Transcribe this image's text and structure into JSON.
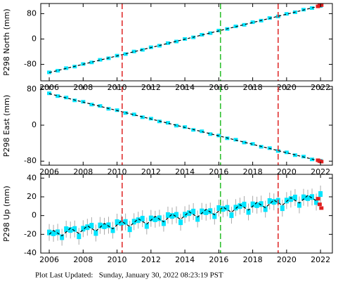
{
  "chart_data": [
    {
      "type": "scatter",
      "ylabel": "P298 North (mm)",
      "xlim": [
        2005.5,
        2022.7
      ],
      "ylim": [
        -132,
        112
      ],
      "xticks": [
        2006,
        2008,
        2010,
        2012,
        2014,
        2016,
        2018,
        2020,
        2022
      ],
      "yticks": [
        -80,
        0,
        80
      ],
      "events": [
        {
          "x": 2010.3,
          "color": "#e03030"
        },
        {
          "x": 2016.1,
          "color": "#30c030"
        },
        {
          "x": 2019.5,
          "color": "#e03030"
        }
      ],
      "series": [
        {
          "style": "points",
          "color": "#00e5ff",
          "x": [
            2006,
            2006.5,
            2007,
            2007.5,
            2008,
            2008.5,
            2009,
            2009.5,
            2010,
            2010.5,
            2011,
            2011.5,
            2012,
            2012.5,
            2013,
            2013.5,
            2014,
            2014.5,
            2015,
            2015.5,
            2016,
            2016.5,
            2017,
            2017.5,
            2018,
            2018.5,
            2019,
            2019.5,
            2020,
            2020.5,
            2021,
            2021.5,
            2022
          ],
          "values": [
            -105.2,
            -100.1,
            -92.0,
            -87.0,
            -78.9,
            -73.8,
            -65.6,
            -60.7,
            -52.5,
            -47.5,
            -39.4,
            -34.2,
            -26.1,
            -21.1,
            -13.0,
            -7.9,
            0.2,
            5.3,
            13.5,
            18.5,
            26.7,
            31.7,
            39.9,
            44.8,
            53.0,
            58.0,
            66.2,
            71.2,
            79.3,
            84.4,
            92.6,
            97.6,
            104.2
          ]
        },
        {
          "style": "dashed",
          "color": "#000000",
          "x": [
            2006,
            2022.1
          ],
          "values": [
            -106,
            106
          ]
        },
        {
          "style": "points",
          "color": "#e02020",
          "x": [
            2021.85,
            2021.95,
            2022.05
          ],
          "values": [
            103,
            106,
            107
          ]
        }
      ]
    },
    {
      "type": "scatter",
      "ylabel": "P298 East (mm)",
      "xlim": [
        2005.5,
        2022.7
      ],
      "ylim": [
        -89,
        86
      ],
      "xticks": [
        2006,
        2008,
        2010,
        2012,
        2014,
        2016,
        2018,
        2020,
        2022
      ],
      "yticks": [
        -80,
        0,
        80
      ],
      "events": [
        {
          "x": 2010.3,
          "color": "#e03030"
        },
        {
          "x": 2016.1,
          "color": "#30c030"
        },
        {
          "x": 2019.5,
          "color": "#e03030"
        }
      ],
      "series": [
        {
          "style": "points",
          "color": "#00e5ff",
          "x": [
            2006,
            2006.5,
            2007,
            2007.5,
            2008,
            2008.5,
            2009,
            2009.5,
            2010,
            2010.5,
            2011,
            2011.5,
            2012,
            2012.5,
            2013,
            2013.5,
            2014,
            2014.5,
            2015,
            2015.5,
            2016,
            2016.5,
            2017,
            2017.5,
            2018,
            2018.5,
            2019,
            2019.5,
            2020,
            2020.5,
            2021,
            2021.5,
            2022
          ],
          "values": [
            70.8,
            64.6,
            61.4,
            55.1,
            52.0,
            45.8,
            42.7,
            36.4,
            33.3,
            27.0,
            23.9,
            17.6,
            14.5,
            8.3,
            5.2,
            -1.1,
            -4.2,
            -10.5,
            -13.6,
            -19.9,
            -23.0,
            -29.2,
            -32.3,
            -38.6,
            -41.7,
            -48.0,
            -51.1,
            -57.4,
            -60.5,
            -66.7,
            -69.8,
            -76.1,
            -79.2
          ]
        },
        {
          "style": "dashed",
          "color": "#000000",
          "x": [
            2006,
            2022.1
          ],
          "values": [
            70,
            -81
          ]
        },
        {
          "style": "points",
          "color": "#e02020",
          "x": [
            2021.85,
            2021.95,
            2022.05
          ],
          "values": [
            -78,
            -80,
            -81
          ]
        }
      ]
    },
    {
      "type": "scatter",
      "ylabel": "P298 Up (mm)",
      "xlim": [
        2005.5,
        2022.7
      ],
      "ylim": [
        -40,
        44
      ],
      "xticks": [
        2006,
        2008,
        2010,
        2012,
        2014,
        2016,
        2018,
        2020,
        2022
      ],
      "yticks": [
        -40,
        -20,
        0,
        20,
        40
      ],
      "events": [
        {
          "x": 2010.3,
          "color": "#e03030"
        },
        {
          "x": 2016.1,
          "color": "#30c030"
        },
        {
          "x": 2019.5,
          "color": "#e03030"
        }
      ],
      "series": [
        {
          "style": "points",
          "color": "#00e5ff",
          "error": 9,
          "x": [
            2006,
            2006.25,
            2006.5,
            2006.75,
            2007,
            2007.25,
            2007.5,
            2007.75,
            2008,
            2008.25,
            2008.5,
            2008.75,
            2009,
            2009.25,
            2009.5,
            2009.75,
            2010,
            2010.25,
            2010.5,
            2010.75,
            2011,
            2011.25,
            2011.5,
            2011.75,
            2012,
            2012.25,
            2012.5,
            2012.75,
            2013,
            2013.25,
            2013.5,
            2013.75,
            2014,
            2014.25,
            2014.5,
            2014.75,
            2015,
            2015.25,
            2015.5,
            2015.75,
            2016,
            2016.25,
            2016.5,
            2016.75,
            2017,
            2017.25,
            2017.5,
            2017.75,
            2018,
            2018.25,
            2018.5,
            2018.75,
            2019,
            2019.25,
            2019.5,
            2019.75,
            2020,
            2020.25,
            2020.5,
            2020.75,
            2021,
            2021.25,
            2021.5,
            2021.75,
            2022
          ],
          "values": [
            -18,
            -18.9,
            -17.8,
            -23.1,
            -14.5,
            -15.4,
            -14.3,
            -22.1,
            -14,
            -12.4,
            -10.8,
            -18.6,
            -10.5,
            -11.4,
            -10.3,
            -15.6,
            -7,
            -7.9,
            -6.8,
            -14.6,
            -6.5,
            -4.9,
            -3.3,
            -11.1,
            -3,
            -3.9,
            -2.8,
            -8.1,
            0.5,
            -0.4,
            0.8,
            -7.1,
            1,
            2.6,
            4.3,
            -3.6,
            4.5,
            3.6,
            4.8,
            -0.6,
            8,
            7.1,
            8.3,
            0.4,
            8.5,
            10.1,
            11.8,
            3.9,
            12,
            11.1,
            12.3,
            6.9,
            15.5,
            14.6,
            15.8,
            7.9,
            16,
            17.6,
            19.3,
            11.4,
            19.5,
            18.6,
            19.8,
            14.4,
            23
          ]
        },
        {
          "style": "dashed",
          "color": "#000000",
          "x": [
            2006,
            2006.25,
            2006.5,
            2006.75,
            2007,
            2007.25,
            2007.5,
            2007.75,
            2008,
            2008.25,
            2008.5,
            2008.75,
            2009,
            2009.25,
            2009.5,
            2009.75,
            2010,
            2010.25,
            2010.5,
            2010.75,
            2011,
            2011.25,
            2011.5,
            2011.75,
            2012,
            2012.25,
            2012.5,
            2012.75,
            2013,
            2013.25,
            2013.5,
            2013.75,
            2014,
            2014.25,
            2014.5,
            2014.75,
            2015,
            2015.25,
            2015.5,
            2015.75,
            2016,
            2016.25,
            2016.5,
            2016.75,
            2017,
            2017.25,
            2017.5,
            2017.75,
            2018,
            2018.25,
            2018.5,
            2018.75,
            2019,
            2019.25,
            2019.5,
            2019.75,
            2020,
            2020.25,
            2020.5,
            2020.75,
            2021,
            2021.25,
            2021.5,
            2021.75,
            2022
          ],
          "values": [
            -20,
            -15.9,
            -18.75,
            -21.6,
            -17.5,
            -13.4,
            -16.25,
            -19.1,
            -15,
            -10.9,
            -13.75,
            -16.6,
            -12.5,
            -8.4,
            -11.25,
            -14.1,
            -10,
            -5.9,
            -8.75,
            -11.6,
            -7.5,
            -3.4,
            -6.25,
            -9.1,
            -5,
            -0.9,
            -3.75,
            -6.6,
            -2.5,
            1.6,
            -1.25,
            -4.1,
            0,
            4.1,
            1.25,
            -1.6,
            2.5,
            6.6,
            3.75,
            0.9,
            5,
            9.1,
            6.25,
            3.4,
            7.5,
            11.6,
            8.75,
            5.9,
            10,
            14.1,
            11.25,
            8.4,
            12.5,
            16.6,
            13.75,
            10.9,
            15,
            19.1,
            16.25,
            13.4,
            17.5,
            21.6,
            18.75,
            15.9,
            20
          ]
        },
        {
          "style": "points",
          "color": "#e02020",
          "x": [
            2021.85,
            2021.95,
            2022.05
          ],
          "values": [
            18,
            12,
            8
          ]
        }
      ]
    }
  ],
  "footer": "Plot Last Updated:   Sunday, January 30, 2022 08:23:19 PST"
}
